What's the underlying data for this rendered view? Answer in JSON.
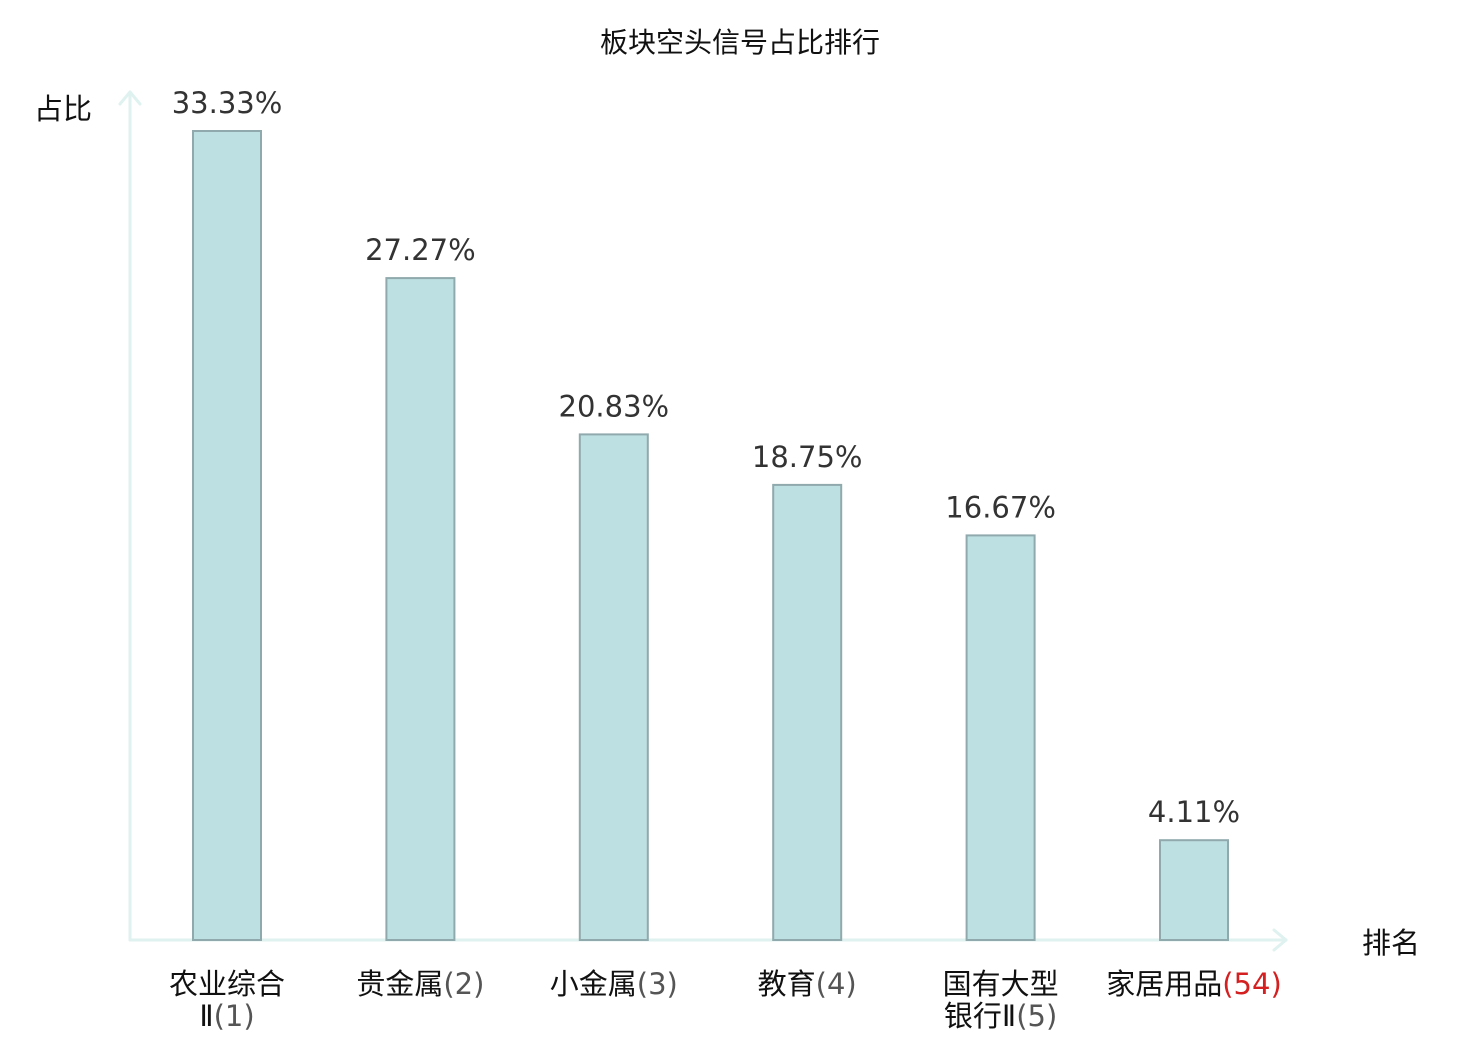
{
  "chart_data": {
    "type": "bar",
    "title": "板块空头信号占比排行",
    "xlabel": "排名",
    "ylabel": "占比",
    "categories": [
      {
        "name_lines": [
          "农业综合",
          "Ⅱ"
        ],
        "rank": "(1)",
        "highlight": false
      },
      {
        "name_lines": [
          "贵金属"
        ],
        "rank": "(2)",
        "highlight": false
      },
      {
        "name_lines": [
          "小金属"
        ],
        "rank": "(3)",
        "highlight": false
      },
      {
        "name_lines": [
          "教育"
        ],
        "rank": "(4)",
        "highlight": false
      },
      {
        "name_lines": [
          "国有大型",
          "银行Ⅱ"
        ],
        "rank": "(5)",
        "highlight": false
      },
      {
        "name_lines": [
          "家居用品"
        ],
        "rank": "(54)",
        "highlight": true
      }
    ],
    "values": [
      33.33,
      27.27,
      20.83,
      18.75,
      16.67,
      4.11
    ],
    "value_labels": [
      "33.33%",
      "27.27%",
      "20.83%",
      "18.75%",
      "16.67%",
      "4.11%"
    ],
    "ylim": [
      0,
      33.33
    ],
    "grid": false,
    "legend": "none"
  },
  "colors": {
    "bar_fill": "#bde0e3",
    "bar_stroke": "#8fa9ac",
    "axis": "#dff2ef",
    "text": "#111111",
    "value_text": "#333333",
    "rank_text": "#555555",
    "highlight": "#d42020"
  }
}
